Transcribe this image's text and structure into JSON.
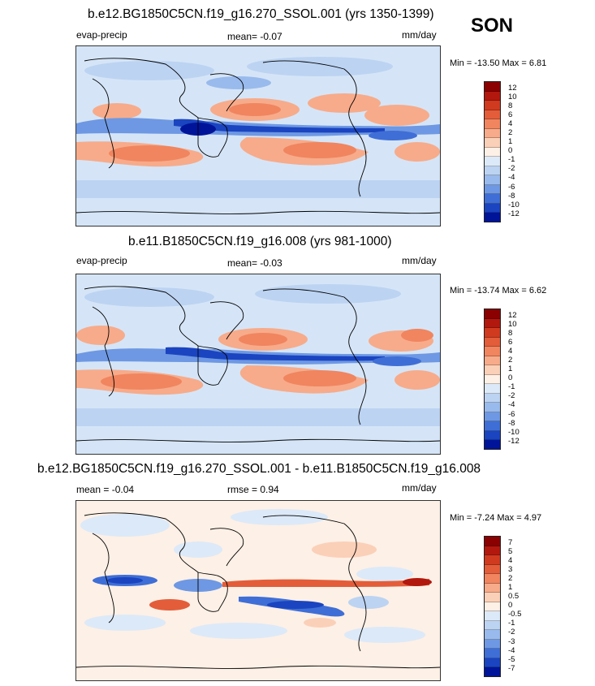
{
  "season": "SON",
  "panels": [
    {
      "id": "top",
      "title": "b.e12.BG1850C5CN.f19_g16.270_SSOL.001 (yrs 1350-1399)",
      "left_label": "evap-precip",
      "mid_label": "mean=  -0.07",
      "units": "mm/day",
      "minmax": "Min = -13.50 Max =   6.81"
    },
    {
      "id": "mid",
      "title": "b.e11.B1850C5CN.f19_g16.008 (yrs 981-1000)",
      "left_label": "evap-precip",
      "mid_label": "mean=  -0.03",
      "units": "mm/day",
      "minmax": "Min = -13.74 Max =   6.62"
    },
    {
      "id": "diff",
      "title": "b.e12.BG1850C5CN.f19_g16.270_SSOL.001 - b.e11.B1850C5CN.f19_g16.008",
      "left_label": "mean =  -0.04",
      "mid_label": "rmse =  0.94",
      "units": "mm/day",
      "minmax": "Min =  -7.24 Max =   4.97"
    }
  ],
  "chart_data": [
    {
      "type": "heatmap",
      "title": "b.e12.BG1850C5CN.f19_g16.270_SSOL.001 (yrs 1350-1399)",
      "variable": "evap-precip",
      "units": "mm/day",
      "season": "SON",
      "mean": -0.07,
      "min": -13.5,
      "max": 6.81,
      "colorbar_levels": [
        12,
        10,
        8,
        6,
        4,
        2,
        1,
        0,
        -1,
        -2,
        -4,
        -6,
        -8,
        -10,
        -12
      ]
    },
    {
      "type": "heatmap",
      "title": "b.e11.B1850C5CN.f19_g16.008 (yrs 981-1000)",
      "variable": "evap-precip",
      "units": "mm/day",
      "season": "SON",
      "mean": -0.03,
      "min": -13.74,
      "max": 6.62,
      "colorbar_levels": [
        12,
        10,
        8,
        6,
        4,
        2,
        1,
        0,
        -1,
        -2,
        -4,
        -6,
        -8,
        -10,
        -12
      ]
    },
    {
      "type": "heatmap",
      "title": "b.e12.BG1850C5CN.f19_g16.270_SSOL.001 - b.e11.B1850C5CN.f19_g16.008",
      "variable": "evap-precip difference",
      "units": "mm/day",
      "season": "SON",
      "mean": -0.04,
      "rmse": 0.94,
      "min": -7.24,
      "max": 4.97,
      "colorbar_levels": [
        7,
        5,
        4,
        3,
        2,
        1,
        0.5,
        0,
        -0.5,
        -1,
        -2,
        -3,
        -4,
        -5,
        -7
      ]
    }
  ],
  "colorbars": {
    "abs": {
      "labels": [
        "12",
        "10",
        "8",
        "6",
        "4",
        "2",
        "1",
        "0",
        "-1",
        "-2",
        "-4",
        "-6",
        "-8",
        "-10",
        "-12"
      ]
    },
    "diff": {
      "labels": [
        "7",
        "5",
        "4",
        "3",
        "2",
        "1",
        "0.5",
        "0",
        "-0.5",
        "-1",
        "-2",
        "-3",
        "-4",
        "-5",
        "-7"
      ]
    },
    "colors": [
      "#8b0000",
      "#b2180e",
      "#d03a1f",
      "#e35d3a",
      "#f0855f",
      "#f7ab8a",
      "#fbd0b8",
      "#fdf0e6",
      "#dce9f8",
      "#bcd3f2",
      "#99baec",
      "#6e98e3",
      "#3f6ed6",
      "#1a44c0",
      "#00149a"
    ]
  }
}
